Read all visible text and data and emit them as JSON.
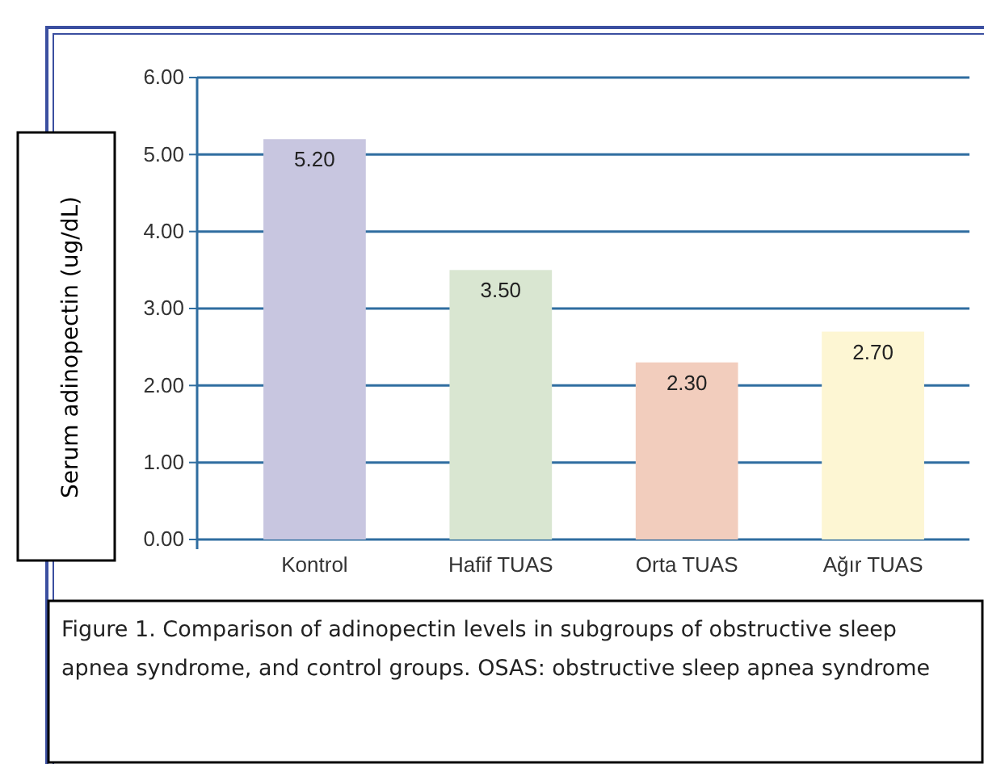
{
  "chart_data": {
    "type": "bar",
    "ylabel": "Serum adinopectin (ug/dL)",
    "categories": [
      "Kontrol",
      "Hafif TUAS",
      "Orta TUAS",
      "Ağır TUAS"
    ],
    "values": [
      5.2,
      3.5,
      2.3,
      2.7
    ],
    "colors": [
      "#c8c6e0",
      "#d9e6d1",
      "#f2cdbd",
      "#fdf6d3"
    ],
    "value_labels": [
      "5.20",
      "3.50",
      "2.30",
      "2.70"
    ],
    "ylim": [
      0,
      6
    ],
    "yticks": [
      {
        "value": 0,
        "label": "0.00"
      },
      {
        "value": 1,
        "label": "1.00"
      },
      {
        "value": 2,
        "label": "2.00"
      },
      {
        "value": 3,
        "label": "3.00"
      },
      {
        "value": 4,
        "label": "4.00"
      },
      {
        "value": 5,
        "label": "5.00"
      },
      {
        "value": 6,
        "label": "6.00"
      }
    ],
    "grid": "y",
    "annotations": [
      "Figure 1. Comparison of adinopectin levels in subgroups of obstructive sleep apnea syndrome, and control groups. OSAS: obstructive sleep apnea syndrome"
    ]
  }
}
